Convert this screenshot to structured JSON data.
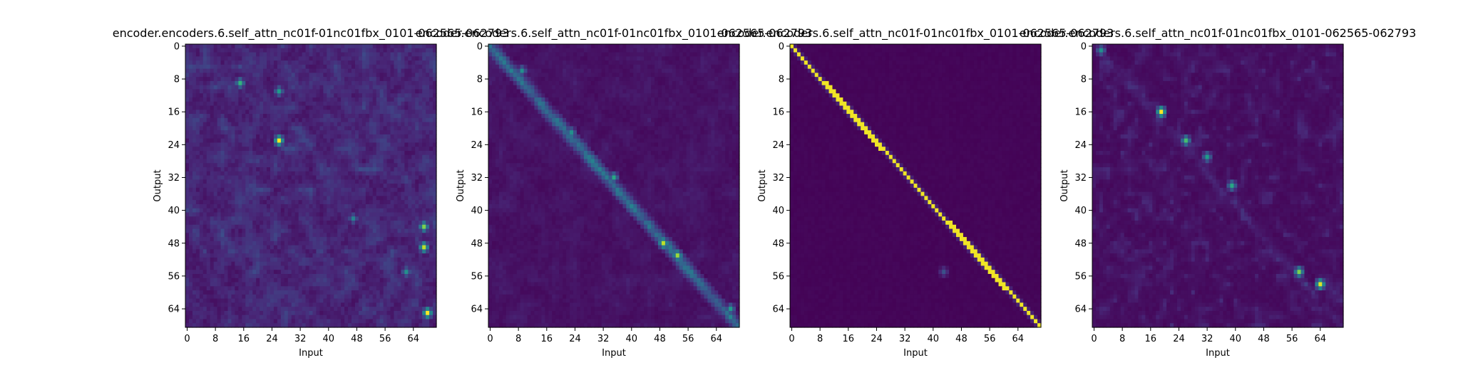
{
  "chart_data": [
    {
      "type": "heatmap",
      "title": "encoder.encoders.6.self_attn_nc01f-01nc01fbx_0101-062565-062793",
      "xlabel": "Input",
      "ylabel": "Output",
      "x_ticks": [
        "0",
        "8",
        "16",
        "24",
        "32",
        "40",
        "48",
        "56",
        "64"
      ],
      "y_ticks": [
        "0",
        "8",
        "16",
        "24",
        "32",
        "40",
        "48",
        "56",
        "64"
      ],
      "n_input": 71,
      "n_output": 69,
      "colormap": "viridis",
      "pattern": "diffuse",
      "hotspots": [
        {
          "x": 26,
          "y": 23,
          "w": 1.0
        },
        {
          "x": 68,
          "y": 65,
          "w": 1.0
        },
        {
          "x": 67,
          "y": 49,
          "w": 0.9
        },
        {
          "x": 67,
          "y": 44,
          "w": 0.8
        },
        {
          "x": 15,
          "y": 9,
          "w": 0.65
        },
        {
          "x": 26,
          "y": 11,
          "w": 0.55
        },
        {
          "x": 62,
          "y": 55,
          "w": 0.5
        },
        {
          "x": 47,
          "y": 42,
          "w": 0.45
        }
      ]
    },
    {
      "type": "heatmap",
      "title": "encoder.encoders.6.self_attn_nc01f-01nc01fbx_0101-062565-062793",
      "xlabel": "Input",
      "ylabel": "Output",
      "x_ticks": [
        "0",
        "8",
        "16",
        "24",
        "32",
        "40",
        "48",
        "56",
        "64"
      ],
      "y_ticks": [
        "0",
        "8",
        "16",
        "24",
        "32",
        "40",
        "48",
        "56",
        "64"
      ],
      "n_input": 71,
      "n_output": 69,
      "colormap": "viridis",
      "pattern": "diagonal-noisy",
      "hotspots": [
        {
          "x": 49,
          "y": 48,
          "w": 0.9
        },
        {
          "x": 53,
          "y": 51,
          "w": 0.85
        },
        {
          "x": 35,
          "y": 32,
          "w": 0.6
        },
        {
          "x": 23,
          "y": 21,
          "w": 0.5
        },
        {
          "x": 9,
          "y": 6,
          "w": 0.5
        },
        {
          "x": 68,
          "y": 64,
          "w": 0.55
        }
      ]
    },
    {
      "type": "heatmap",
      "title": "encoder.encoders.6.self_attn_nc01f-01nc01fbx_0101-062565-062793",
      "xlabel": "Input",
      "ylabel": "Output",
      "x_ticks": [
        "0",
        "8",
        "16",
        "24",
        "32",
        "40",
        "48",
        "56",
        "64"
      ],
      "y_ticks": [
        "0",
        "8",
        "16",
        "24",
        "32",
        "40",
        "48",
        "56",
        "64"
      ],
      "n_input": 71,
      "n_output": 69,
      "colormap": "viridis",
      "pattern": "diagonal-sharp",
      "hotspots": [
        {
          "x": 43,
          "y": 55,
          "w": 0.25
        }
      ]
    },
    {
      "type": "heatmap",
      "title": "encoder.encoders.6.self_attn_nc01f-01nc01fbx_0101-062565-062793",
      "xlabel": "Input",
      "ylabel": "Output",
      "x_ticks": [
        "0",
        "8",
        "16",
        "24",
        "32",
        "40",
        "48",
        "56",
        "64"
      ],
      "y_ticks": [
        "0",
        "8",
        "16",
        "24",
        "32",
        "40",
        "48",
        "56",
        "64"
      ],
      "n_input": 71,
      "n_output": 69,
      "colormap": "viridis",
      "pattern": "sparse",
      "hotspots": [
        {
          "x": 19,
          "y": 16,
          "w": 1.0
        },
        {
          "x": 64,
          "y": 58,
          "w": 0.95
        },
        {
          "x": 58,
          "y": 55,
          "w": 0.8
        },
        {
          "x": 26,
          "y": 23,
          "w": 0.7
        },
        {
          "x": 39,
          "y": 34,
          "w": 0.6
        },
        {
          "x": 32,
          "y": 27,
          "w": 0.55
        },
        {
          "x": 2,
          "y": 1,
          "w": 0.5
        }
      ]
    }
  ]
}
